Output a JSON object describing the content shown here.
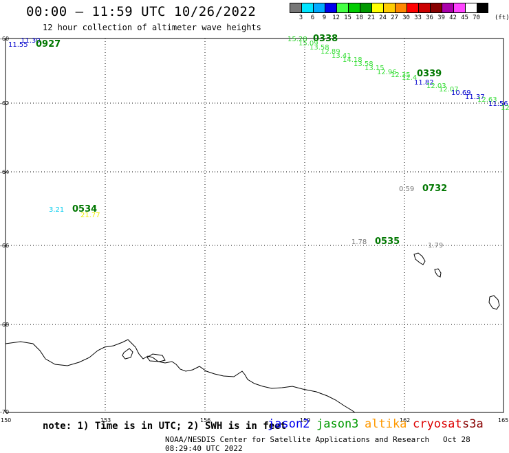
{
  "header": {
    "title": "00:00 – 11:59 UTC 10/26/2022",
    "subtitle": "12 hour collection of altimeter wave heights"
  },
  "legend": {
    "colors": [
      "#777777",
      "#00e5ff",
      "#00aaff",
      "#0000ee",
      "#44ff44",
      "#00cc00",
      "#009900",
      "#ffff00",
      "#ffcc00",
      "#ff8800",
      "#ff0000",
      "#cc0000",
      "#880000",
      "#aa00aa",
      "#ff44ff",
      "#ffffff",
      "#000000"
    ],
    "labels": [
      "3",
      "6",
      "9",
      "12",
      "15",
      "18",
      "21",
      "24",
      "27",
      "30",
      "33",
      "36",
      "39",
      "42",
      "45",
      "70"
    ],
    "unit": "(ft)"
  },
  "axes": {
    "lon_ticks": [
      "150",
      "153",
      "156",
      "159",
      "162",
      "165"
    ],
    "lat_ticks": [
      "-60",
      "-62",
      "-64",
      "-66",
      "-68",
      "-70"
    ]
  },
  "observations": [
    {
      "text": "11.30",
      "color": "#0000cc"
    },
    {
      "text": "11.55",
      "color": "#0000cc"
    },
    {
      "text": "0927",
      "color": "#007700"
    },
    {
      "text": "15.28",
      "color": "#22cc22"
    },
    {
      "text": "0338",
      "color": "#007700"
    },
    {
      "text": "15.09",
      "color": "#33dd33"
    },
    {
      "text": "13.58",
      "color": "#33dd33"
    },
    {
      "text": "12.89",
      "color": "#33dd33"
    },
    {
      "text": "13.41",
      "color": "#33dd33"
    },
    {
      "text": "14.18",
      "color": "#33dd33"
    },
    {
      "text": "13.58",
      "color": "#33dd33"
    },
    {
      "text": "13.15",
      "color": "#33dd33"
    },
    {
      "text": "12.96",
      "color": "#33dd33"
    },
    {
      "text": "12.35",
      "color": "#33dd33"
    },
    {
      "text": "12.4",
      "color": "#33dd33"
    },
    {
      "text": "0339",
      "color": "#007700"
    },
    {
      "text": "11.82",
      "color": "#0000cc"
    },
    {
      "text": "12.03",
      "color": "#33dd33"
    },
    {
      "text": "12.07",
      "color": "#33dd33"
    },
    {
      "text": "10.69",
      "color": "#0000cc"
    },
    {
      "text": "11.37",
      "color": "#0000cc"
    },
    {
      "text": "12.63",
      "color": "#33dd33"
    },
    {
      "text": "11.56",
      "color": "#0000cc"
    },
    {
      "text": "12",
      "color": "#33dd33"
    },
    {
      "text": "0.59",
      "color": "#777777"
    },
    {
      "text": "0732",
      "color": "#007700"
    },
    {
      "text": "3.21",
      "color": "#00ccee"
    },
    {
      "text": "0534",
      "color": "#007700"
    },
    {
      "text": "21.77",
      "color": "#eeee00"
    },
    {
      "text": "1.78",
      "color": "#777777"
    },
    {
      "text": "0535",
      "color": "#007700"
    },
    {
      "text": "1.79",
      "color": "#777777"
    }
  ],
  "footer": {
    "note": "note: 1) Time is in UTC; 2) SWH is in feet",
    "satellites": [
      {
        "name": "jason2",
        "color": "#0000ee"
      },
      {
        "name": "jason3",
        "color": "#009900"
      },
      {
        "name": "altika",
        "color": "#ff9900"
      },
      {
        "name": "cryosat",
        "color": "#dd0000"
      },
      {
        "name": "s3a",
        "color": "#880000"
      }
    ],
    "credit": "NOAA/NESDIS Center for Satellite Applications and Research",
    "timestamp": "Oct 28 08:29:40 UTC 2022"
  }
}
